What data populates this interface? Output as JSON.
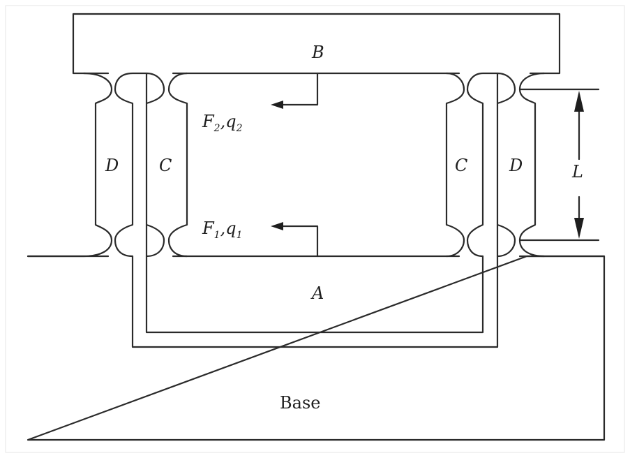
{
  "labels": {
    "B": "B",
    "A": "A",
    "C_left": "C",
    "C_right": "C",
    "D_left": "D",
    "D_right": "D",
    "L": "L",
    "base": "Base"
  },
  "forces": {
    "upper": {
      "F": "F",
      "F_sub": "2",
      "sep": ",",
      "q": "q",
      "q_sub": "2"
    },
    "lower": {
      "F": "F",
      "F_sub": "1",
      "sep": ",",
      "q": "q",
      "q_sub": "1"
    }
  },
  "colors": {
    "line": "#2a2a2a",
    "background": "#ffffff"
  }
}
